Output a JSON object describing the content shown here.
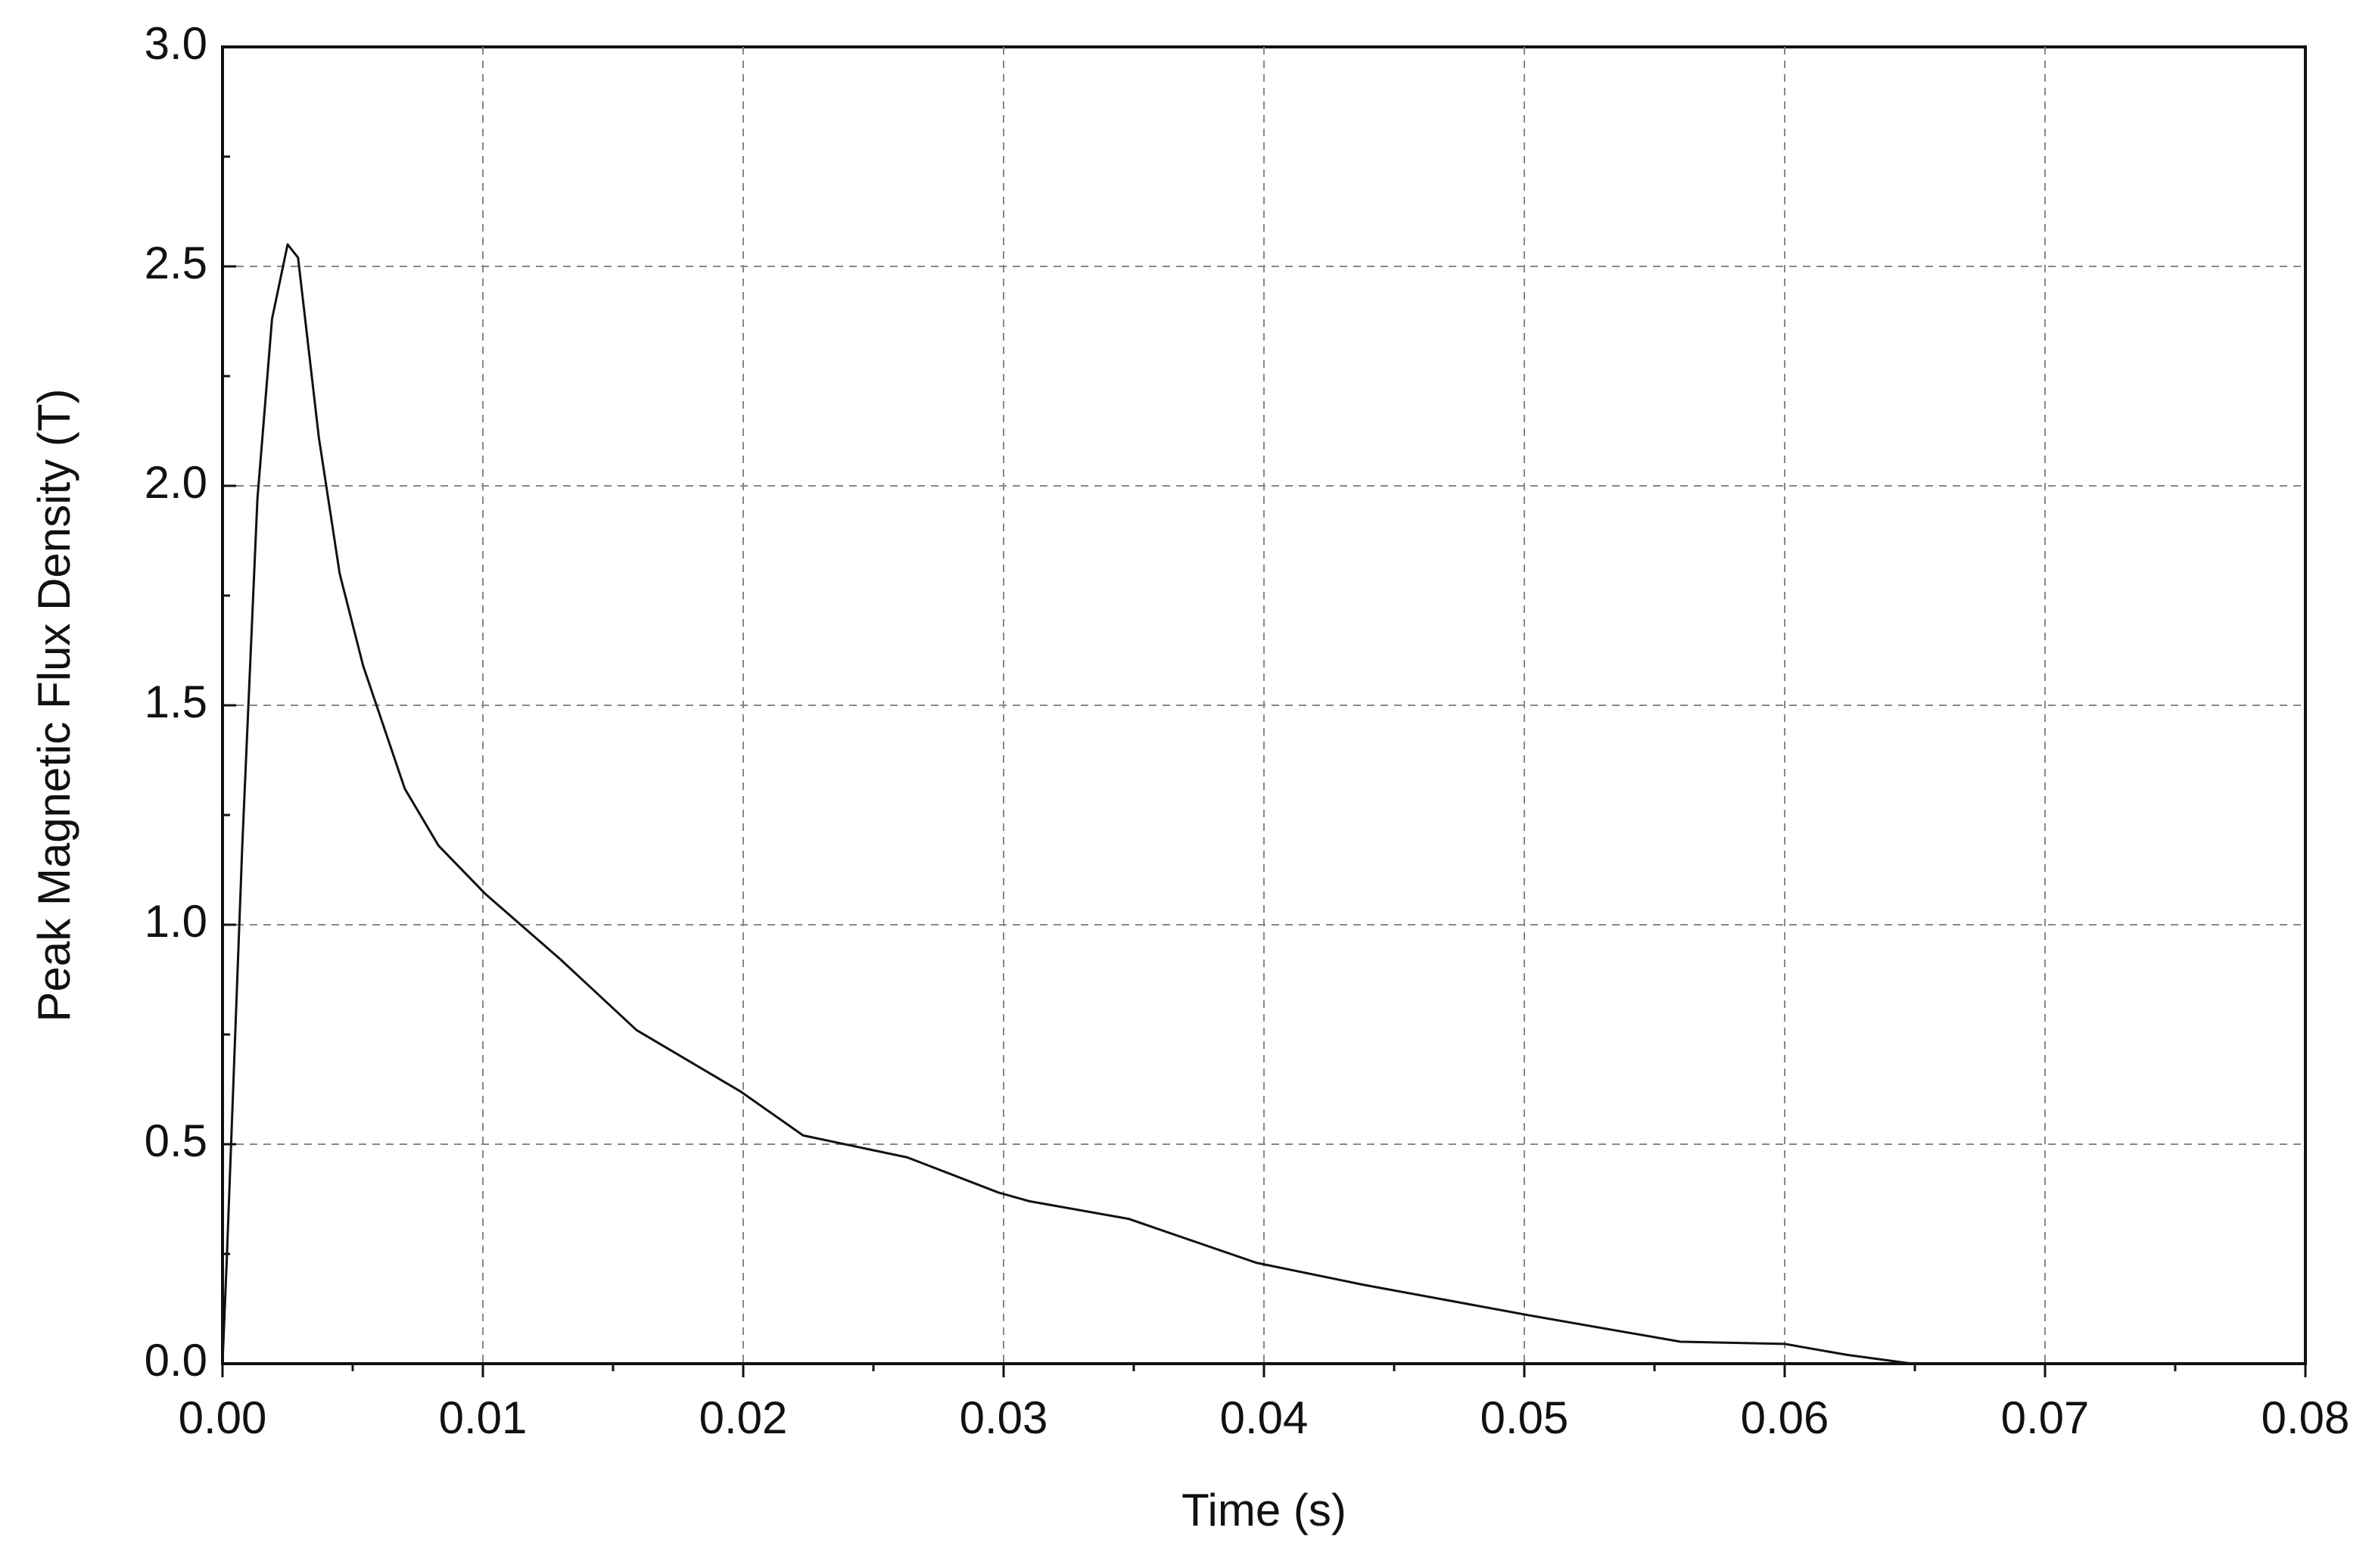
{
  "chart_data": {
    "type": "line",
    "x_label": "Time (s)",
    "y_label": "Peak Magnetic Flux Density (T)",
    "xlim": [
      0,
      0.08
    ],
    "ylim": [
      0,
      3.0
    ],
    "xticks": [
      {
        "value": 0,
        "label": "0.00"
      },
      0.01,
      0.02,
      0.03,
      0.04,
      0.05,
      0.06,
      0.07,
      0.08
    ],
    "yticks": [
      {
        "value": 0,
        "label": "0.0"
      },
      0.5,
      {
        "value": 1,
        "label": "1.0"
      },
      1.5,
      {
        "value": 2,
        "label": "2.0"
      },
      2.5,
      {
        "value": 3,
        "label": "3.0"
      }
    ],
    "grid": true,
    "series": [
      {
        "color": "#111111",
        "x": [
          0,
          0.00017,
          0.00076,
          0.00134,
          0.0019,
          0.0025,
          0.0029,
          0.0037,
          0.0045,
          0.0054,
          0.007,
          0.0083,
          0.0101,
          0.013,
          0.0159,
          0.0199,
          0.0223,
          0.0263,
          0.0298,
          0.031,
          0.0348,
          0.0397,
          0.0438,
          0.0502,
          0.056,
          0.06,
          0.0624,
          0.0649
        ],
        "values": [
          0,
          0.245,
          1.18,
          1.97,
          2.38,
          2.55,
          2.52,
          2.11,
          1.8,
          1.59,
          1.31,
          1.18,
          1.07,
          0.92,
          0.76,
          0.62,
          0.52,
          0.47,
          0.39,
          0.37,
          0.33,
          0.23,
          0.18,
          0.11,
          0.05,
          0.045,
          0.02,
          0
        ]
      }
    ]
  }
}
